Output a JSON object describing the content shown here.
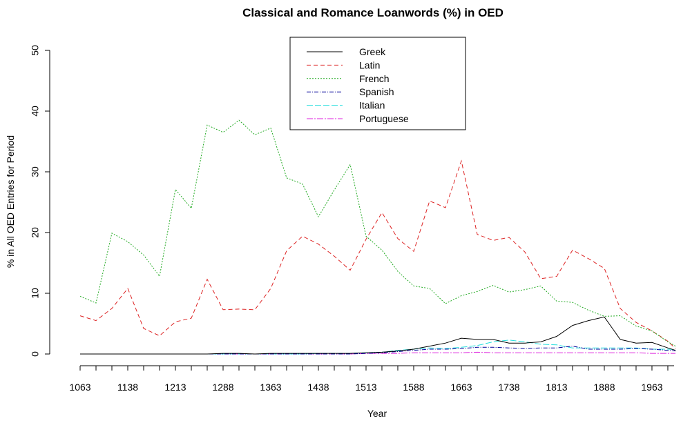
{
  "chart_data": {
    "type": "line",
    "title": "Classical and Romance Loanwords (%) in OED",
    "xlabel": "Year",
    "ylabel": "% in All OED Entries for Period",
    "xlim": [
      1063,
      2000
    ],
    "ylim": [
      0,
      50
    ],
    "x_ticks": [
      "1063",
      "1138",
      "1213",
      "1288",
      "1363",
      "1438",
      "1513",
      "1588",
      "1663",
      "1738",
      "1813",
      "1888",
      "1963"
    ],
    "y_ticks": [
      "0",
      "10",
      "20",
      "30",
      "40",
      "50"
    ],
    "legend_position": "top-center",
    "x": [
      1063,
      1088,
      1113,
      1138,
      1163,
      1188,
      1213,
      1238,
      1263,
      1288,
      1313,
      1338,
      1363,
      1388,
      1413,
      1438,
      1463,
      1488,
      1513,
      1538,
      1563,
      1588,
      1613,
      1638,
      1663,
      1688,
      1713,
      1738,
      1763,
      1788,
      1813,
      1838,
      1863,
      1888,
      1913,
      1938,
      1963,
      1988,
      2000
    ],
    "series": [
      {
        "name": "Greek",
        "color": "#000000",
        "dash": "",
        "values": [
          0,
          0,
          0,
          0,
          0,
          0,
          0,
          0,
          0,
          0.1,
          0.1,
          0,
          0.1,
          0.1,
          0.1,
          0.1,
          0.1,
          0.1,
          0.2,
          0.3,
          0.5,
          0.8,
          1.3,
          1.8,
          2.6,
          2.4,
          2.4,
          1.8,
          1.8,
          2.0,
          2.9,
          4.7,
          5.5,
          6.1,
          2.4,
          1.8,
          1.9,
          1.0,
          0.6
        ]
      },
      {
        "name": "Latin",
        "color": "#dd2222",
        "dash": "6,4",
        "values": [
          6.3,
          5.5,
          7.5,
          10.8,
          4.2,
          3.0,
          5.3,
          5.9,
          12.3,
          7.3,
          7.4,
          7.3,
          10.8,
          17.0,
          19.4,
          18.1,
          16.1,
          13.8,
          18.9,
          23.3,
          19.0,
          16.9,
          25.2,
          24.1,
          31.8,
          19.7,
          18.7,
          19.2,
          16.8,
          12.4,
          12.8,
          17.1,
          15.7,
          14.1,
          7.5,
          5.2,
          3.8,
          2.1,
          0.9
        ]
      },
      {
        "name": "French",
        "color": "#22aa22",
        "dash": "2,2",
        "values": [
          9.5,
          8.4,
          19.9,
          18.5,
          16.3,
          12.8,
          27.1,
          24.0,
          37.7,
          36.5,
          38.5,
          36.1,
          37.2,
          29.0,
          28.0,
          22.6,
          27.0,
          31.2,
          19.4,
          17.1,
          13.6,
          11.2,
          10.8,
          8.3,
          9.6,
          10.3,
          11.3,
          10.2,
          10.6,
          11.2,
          8.7,
          8.5,
          7.2,
          6.2,
          6.3,
          4.6,
          3.8,
          2.0,
          1.3
        ]
      },
      {
        "name": "Spanish",
        "color": "#000099",
        "dash": "6,2,1,2",
        "values": [
          0,
          0,
          0,
          0,
          0,
          0,
          0,
          0,
          0,
          0,
          0,
          0,
          0,
          0,
          0,
          0,
          0,
          0,
          0.1,
          0.2,
          0.4,
          0.6,
          0.8,
          0.8,
          0.9,
          1.1,
          1.1,
          1.0,
          0.9,
          1.0,
          1.0,
          1.3,
          0.8,
          0.8,
          0.8,
          0.9,
          0.8,
          0.6,
          0.5
        ]
      },
      {
        "name": "Italian",
        "color": "#22dddd",
        "dash": "9,3",
        "values": [
          0,
          0,
          0,
          0,
          0,
          0,
          0,
          0,
          0,
          0,
          0,
          0,
          0,
          0,
          0,
          0.1,
          0.1,
          0.1,
          0.2,
          0.3,
          0.6,
          0.8,
          1.0,
          0.9,
          1.1,
          1.4,
          2.0,
          2.3,
          2.0,
          1.6,
          1.5,
          1.0,
          1.0,
          1.0,
          1.0,
          1.0,
          0.8,
          0.8,
          0.7
        ]
      },
      {
        "name": "Portuguese",
        "color": "#dd22dd",
        "dash": "9,2,2,2",
        "values": [
          0,
          0,
          0,
          0,
          0,
          0,
          0,
          0,
          0,
          0,
          0,
          0,
          0,
          0,
          0,
          0,
          0,
          0,
          0.1,
          0.1,
          0.1,
          0.2,
          0.2,
          0.2,
          0.2,
          0.3,
          0.2,
          0.2,
          0.2,
          0.2,
          0.2,
          0.2,
          0.2,
          0.2,
          0.2,
          0.2,
          0.1,
          0.1,
          0.1
        ]
      }
    ]
  }
}
